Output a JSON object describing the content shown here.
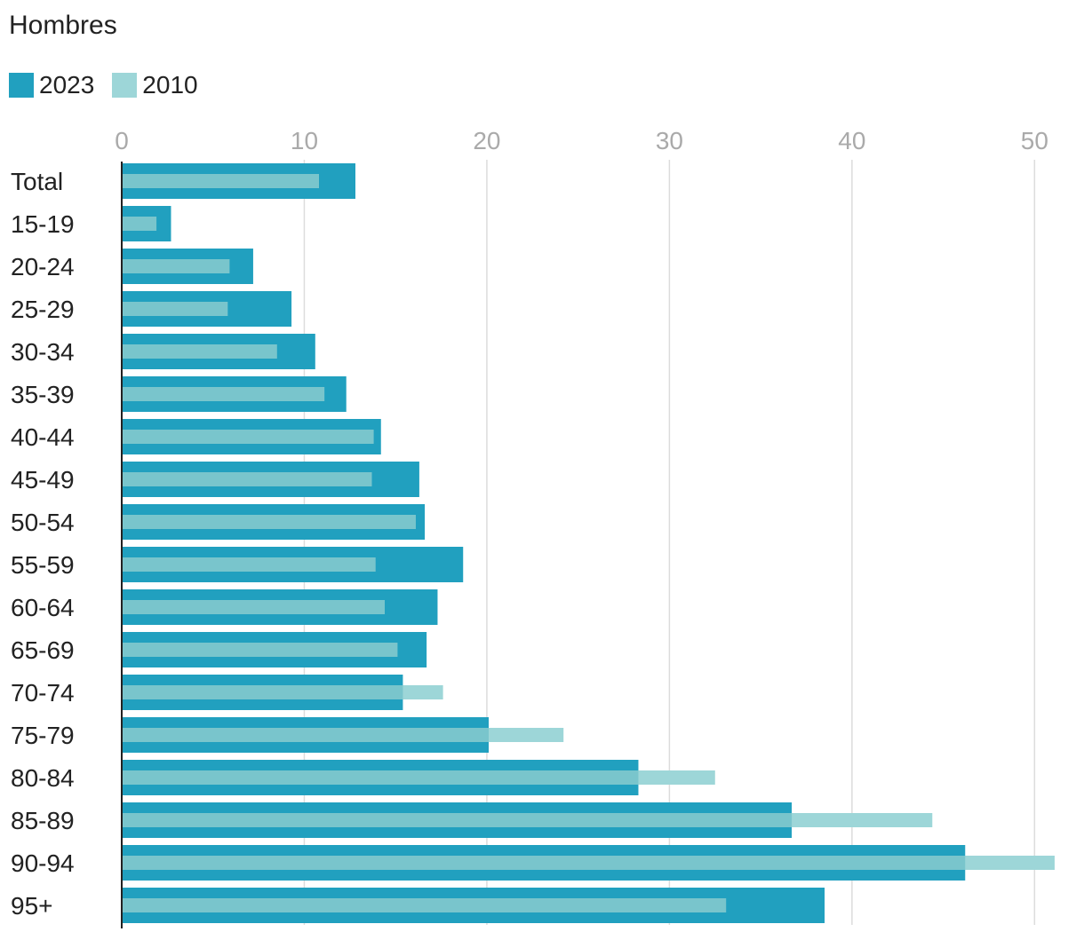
{
  "chart_data": {
    "type": "bar",
    "orientation": "horizontal",
    "title": "Hombres",
    "categories": [
      "Total",
      "15-19",
      "20-24",
      "25-29",
      "30-34",
      "35-39",
      "40-44",
      "45-49",
      "50-54",
      "55-59",
      "60-64",
      "65-69",
      "70-74",
      "75-79",
      "80-84",
      "85-89",
      "90-94",
      "95+"
    ],
    "series": [
      {
        "name": "2023",
        "color": "#21a0bf",
        "values": [
          12.8,
          2.7,
          7.2,
          9.3,
          10.6,
          12.3,
          14.2,
          16.3,
          16.6,
          18.7,
          17.3,
          16.7,
          15.4,
          20.1,
          28.3,
          36.7,
          46.2,
          38.5
        ]
      },
      {
        "name": "2010",
        "color": "#9dd6d8",
        "values": [
          10.8,
          1.9,
          5.9,
          5.8,
          8.5,
          11.1,
          13.8,
          13.7,
          16.1,
          13.9,
          14.4,
          15.1,
          17.6,
          24.2,
          32.5,
          44.4,
          51.1,
          33.1
        ]
      }
    ],
    "x_ticks": [
      "0",
      "10",
      "20",
      "30",
      "40",
      "50"
    ],
    "xlim": [
      0,
      51.2
    ],
    "grid": true,
    "legend_position": "top-left",
    "overlap_color": "#79c5cc"
  }
}
